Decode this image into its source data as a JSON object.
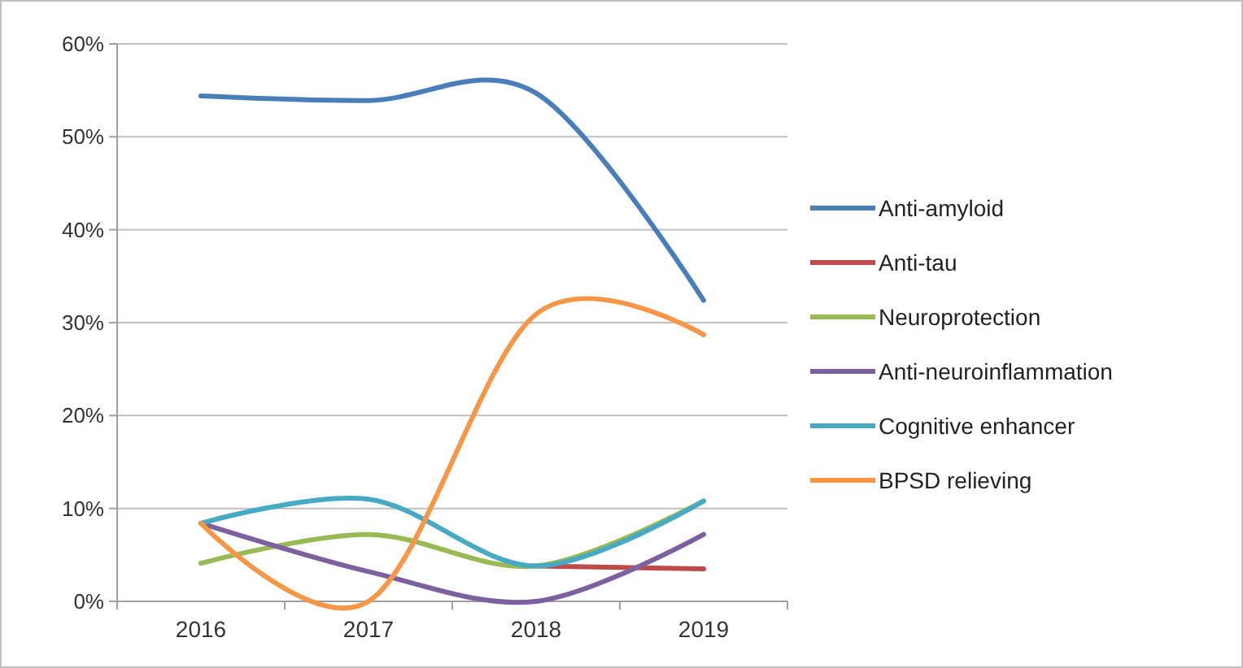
{
  "chart_data": {
    "type": "line",
    "categories": [
      "2016",
      "2017",
      "2018",
      "2019"
    ],
    "series": [
      {
        "name": "Anti-amyloid",
        "color": "#4a7ebb",
        "values": [
          54.4,
          53.9,
          54.7,
          32.4
        ]
      },
      {
        "name": "Anti-tau",
        "color": "#be4b48",
        "values": [
          null,
          null,
          3.8,
          3.5
        ]
      },
      {
        "name": "Neuroprotection",
        "color": "#98b954",
        "values": [
          4.1,
          7.2,
          3.8,
          10.8
        ]
      },
      {
        "name": "Anti-neuroinflammation",
        "color": "#7d60a0",
        "values": [
          8.4,
          3.2,
          0,
          7.2
        ]
      },
      {
        "name": "Cognitive enhancer",
        "color": "#46aac5",
        "values": [
          8.4,
          11,
          3.8,
          10.8
        ]
      },
      {
        "name": "BPSD relieving",
        "color": "#f79646",
        "values": [
          8.4,
          0,
          30.9,
          28.7
        ]
      }
    ],
    "ylim": [
      0,
      60
    ],
    "yticks": [
      {
        "value": 0,
        "label": "0%"
      },
      {
        "value": 10,
        "label": "10%"
      },
      {
        "value": 20,
        "label": "20%"
      },
      {
        "value": 30,
        "label": "30%"
      },
      {
        "value": 40,
        "label": "40%"
      },
      {
        "value": 50,
        "label": "50%"
      },
      {
        "value": 60,
        "label": "60%"
      }
    ],
    "grid": "y",
    "legend": "right",
    "marker": "none",
    "line_style": "solid"
  }
}
